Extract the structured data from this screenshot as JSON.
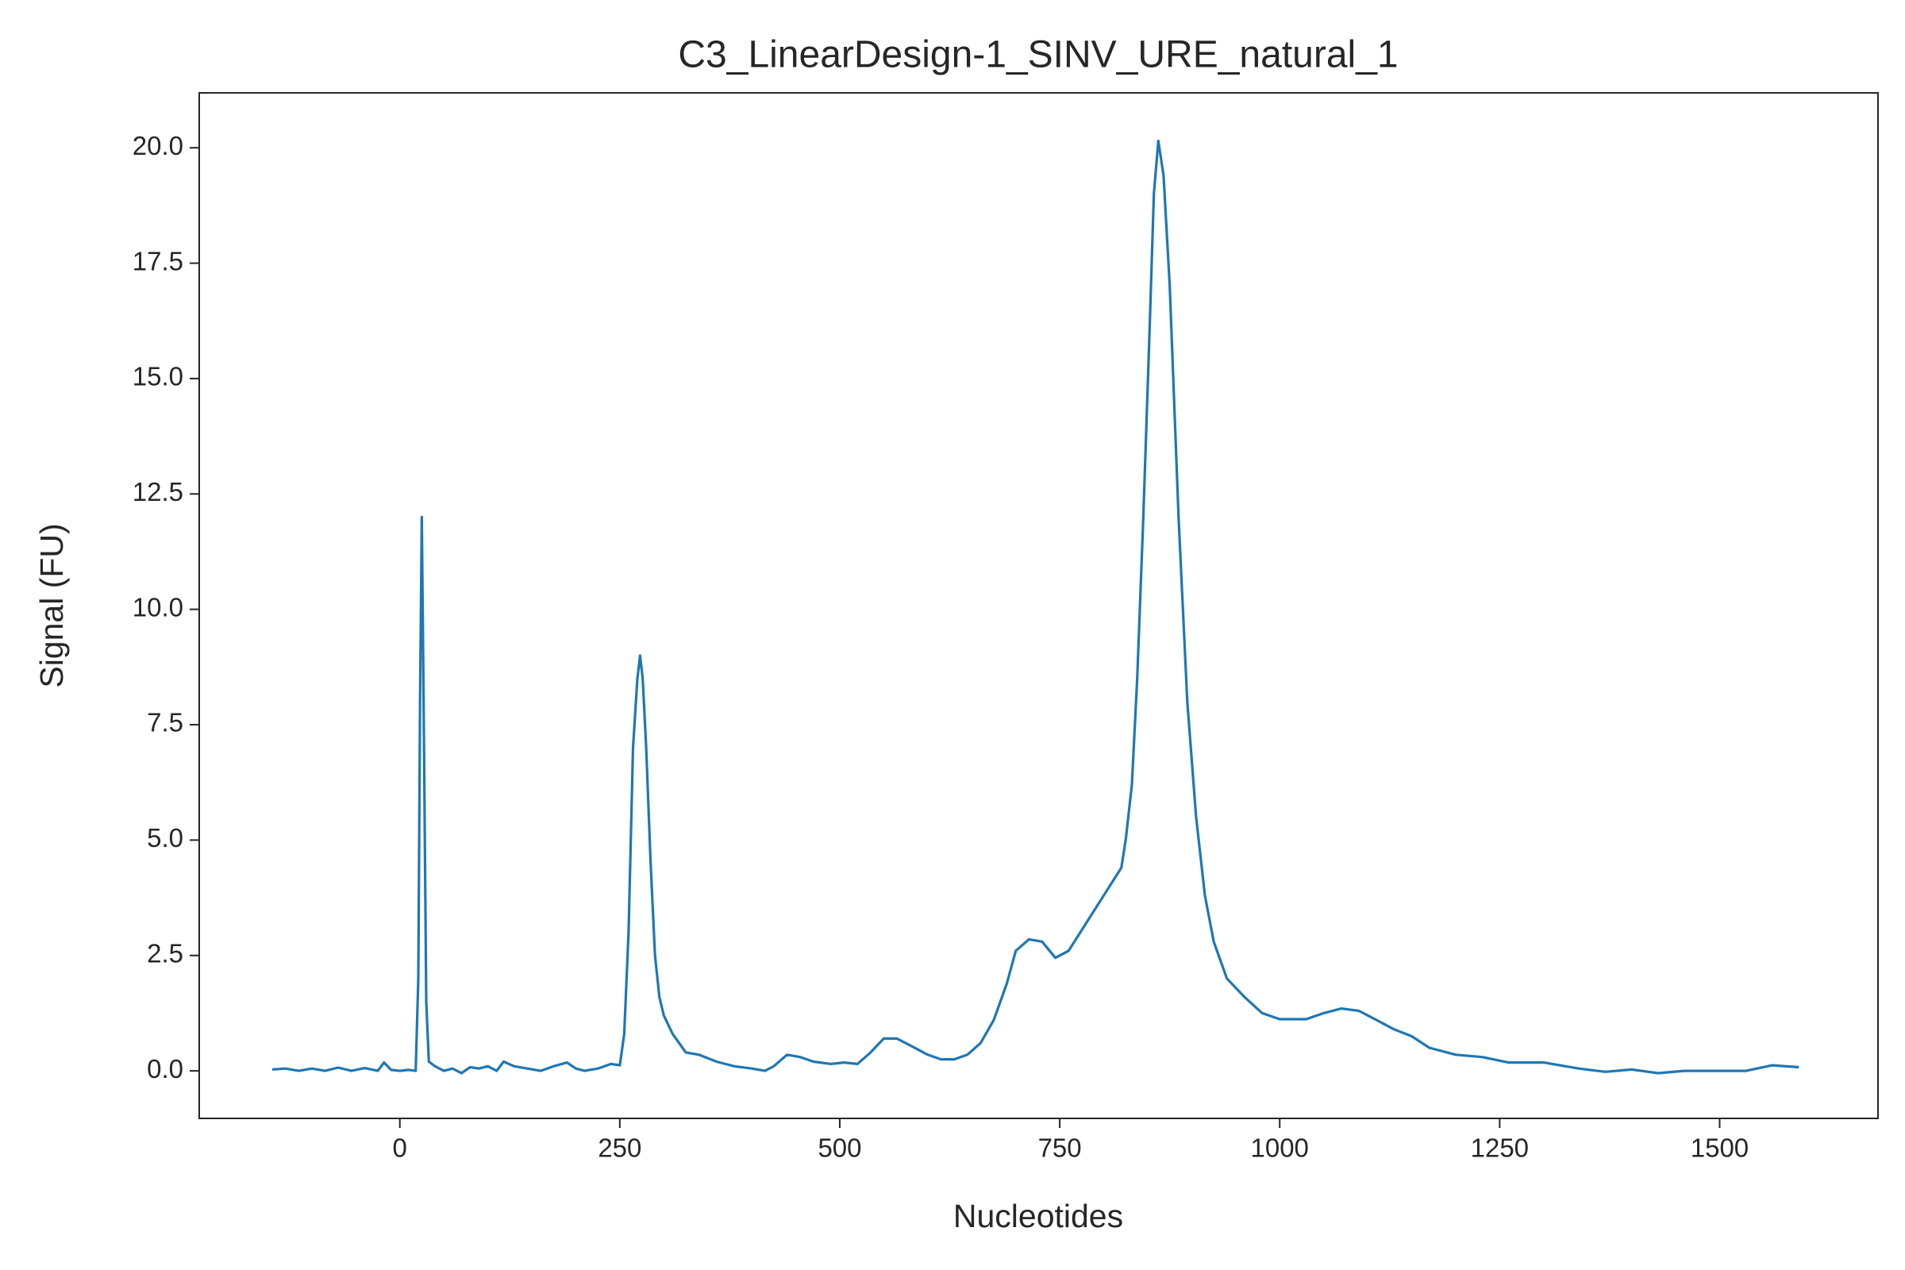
{
  "chart_data": {
    "type": "line",
    "title": "C3_LinearDesign-1_SINV_URE_natural_1",
    "xlabel": "Nucleotides",
    "ylabel": "Signal (FU)",
    "xlim": [
      -228,
      1680
    ],
    "ylim": [
      -1.03,
      21.19
    ],
    "xticks": [
      0,
      250,
      500,
      750,
      1000,
      1250,
      1500
    ],
    "yticks": [
      {
        "value": 0,
        "label": "0.0"
      },
      2.5,
      {
        "value": 5,
        "label": "5.0"
      },
      7.5,
      {
        "value": 10,
        "label": "10.0"
      },
      12.5,
      {
        "value": 15,
        "label": "15.0"
      },
      17.5,
      {
        "value": 20,
        "label": "20.0"
      }
    ],
    "x": [
      -145,
      -130,
      -115,
      -100,
      -85,
      -70,
      -55,
      -40,
      -25,
      -18,
      -10,
      0,
      10,
      18,
      21,
      23,
      25,
      27,
      30,
      33,
      40,
      50,
      60,
      70,
      80,
      90,
      100,
      110,
      118,
      130,
      145,
      160,
      175,
      190,
      200,
      210,
      225,
      240,
      250,
      255,
      260,
      265,
      270,
      273,
      276,
      280,
      285,
      290,
      295,
      300,
      310,
      325,
      340,
      360,
      380,
      400,
      415,
      425,
      440,
      455,
      470,
      490,
      505,
      520,
      535,
      550,
      565,
      580,
      600,
      615,
      630,
      645,
      660,
      675,
      690,
      700,
      715,
      730,
      745,
      760,
      780,
      800,
      820,
      825,
      832,
      838,
      845,
      852,
      857,
      862,
      868,
      875,
      885,
      895,
      905,
      915,
      925,
      940,
      960,
      980,
      1000,
      1030,
      1050,
      1070,
      1090,
      1110,
      1130,
      1150,
      1170,
      1200,
      1230,
      1260,
      1300,
      1340,
      1370,
      1400,
      1430,
      1460,
      1500,
      1530,
      1560,
      1590
    ],
    "series": [
      {
        "name": "Signal",
        "color": "#1f77b4",
        "values": [
          0.03,
          0.05,
          0.0,
          0.05,
          0.0,
          0.07,
          0.0,
          0.06,
          0.0,
          0.18,
          0.02,
          0.0,
          0.02,
          0.0,
          2.0,
          8,
          12.0,
          8,
          1.5,
          0.2,
          0.1,
          0.0,
          0.05,
          -0.05,
          0.08,
          0.05,
          0.1,
          0.0,
          0.2,
          0.1,
          0.05,
          0.0,
          0.1,
          0.18,
          0.05,
          0.0,
          0.05,
          0.15,
          0.12,
          0.8,
          3.0,
          7.0,
          8.5,
          9.0,
          8.5,
          7.0,
          4.5,
          2.5,
          1.6,
          1.2,
          0.8,
          0.4,
          0.35,
          0.2,
          0.1,
          0.05,
          0.0,
          0.1,
          0.35,
          0.3,
          0.2,
          0.15,
          0.18,
          0.15,
          0.4,
          0.7,
          0.7,
          0.55,
          0.35,
          0.25,
          0.25,
          0.35,
          0.6,
          1.1,
          1.9,
          2.6,
          2.85,
          2.8,
          2.45,
          2.6,
          3.2,
          3.8,
          4.4,
          5.0,
          6.2,
          8.5,
          12,
          16,
          19,
          20.15,
          19.4,
          17.0,
          12,
          8,
          5.5,
          3.8,
          2.8,
          2.0,
          1.6,
          1.25,
          1.12,
          1.12,
          1.25,
          1.35,
          1.3,
          1.1,
          0.9,
          0.75,
          0.5,
          0.35,
          0.3,
          0.18,
          0.18,
          0.05,
          -0.02,
          0.03,
          -0.05,
          0.0,
          0.0,
          0.0,
          0.12,
          0.08
        ]
      }
    ]
  }
}
